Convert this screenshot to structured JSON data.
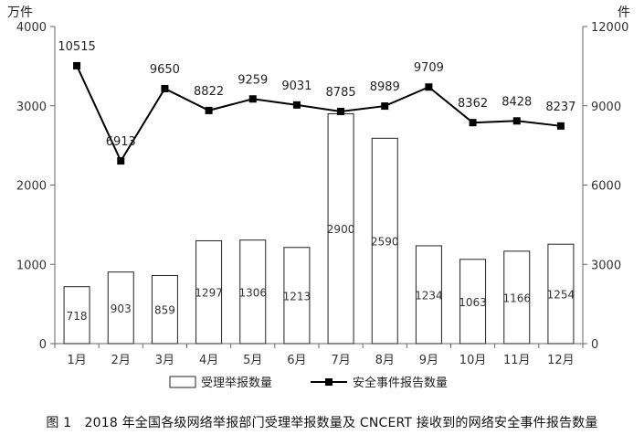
{
  "caption": "图 1　2018 年全国各级网络举报部门受理举报数量及 CNCERT 接收到的网络安全事件报告数量",
  "chart_data": {
    "type": "bar",
    "categories": [
      "1月",
      "2月",
      "3月",
      "4月",
      "5月",
      "6月",
      "7月",
      "8月",
      "9月",
      "10月",
      "11月",
      "12月"
    ],
    "series": [
      {
        "name": "受理举报数量",
        "type": "bar",
        "axis": "left",
        "values": [
          718,
          903,
          859,
          1297,
          1306,
          1213,
          2900,
          2590,
          1234,
          1063,
          1166,
          1254
        ]
      },
      {
        "name": "安全事件报告数量",
        "type": "line",
        "axis": "right",
        "values": [
          10515,
          6913,
          9650,
          8822,
          9259,
          9031,
          8785,
          8989,
          9709,
          8362,
          8428,
          8237
        ]
      }
    ],
    "left_axis": {
      "unit": "万件",
      "ylim": [
        0,
        4000
      ],
      "ticks": [
        "0",
        "1000",
        "2000",
        "3000",
        "4000"
      ]
    },
    "right_axis": {
      "unit": "件",
      "ylim": [
        0,
        12000
      ],
      "ticks": [
        "0",
        "3000",
        "6000",
        "9000",
        "12000"
      ]
    },
    "grid": false,
    "legend_position": "bottom"
  }
}
